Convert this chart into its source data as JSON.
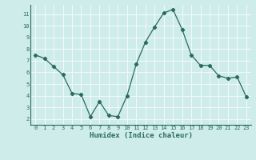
{
  "x": [
    0,
    1,
    2,
    3,
    4,
    5,
    6,
    7,
    8,
    9,
    10,
    11,
    12,
    13,
    14,
    15,
    16,
    17,
    18,
    19,
    20,
    21,
    22,
    23
  ],
  "y": [
    7.5,
    7.2,
    6.5,
    5.8,
    4.2,
    4.1,
    2.2,
    3.5,
    2.3,
    2.2,
    4.0,
    6.7,
    8.6,
    9.9,
    11.1,
    11.4,
    9.7,
    7.5,
    6.6,
    6.6,
    5.7,
    5.5,
    5.6,
    3.9
  ],
  "xlabel": "Humidex (Indice chaleur)",
  "ylim": [
    1.5,
    11.8
  ],
  "xlim": [
    -0.5,
    23.5
  ],
  "yticks": [
    2,
    3,
    4,
    5,
    6,
    7,
    8,
    9,
    10,
    11
  ],
  "xticks": [
    0,
    1,
    2,
    3,
    4,
    5,
    6,
    7,
    8,
    9,
    10,
    11,
    12,
    13,
    14,
    15,
    16,
    17,
    18,
    19,
    20,
    21,
    22,
    23
  ],
  "line_color": "#2a6b61",
  "marker_color": "#2a6b61",
  "bg_color": "#ceecea",
  "grid_color": "#f0fafa",
  "tick_label_color": "#2a6b61",
  "xlabel_color": "#2a6b61",
  "tick_fontsize": 5.0,
  "xlabel_fontsize": 6.5
}
